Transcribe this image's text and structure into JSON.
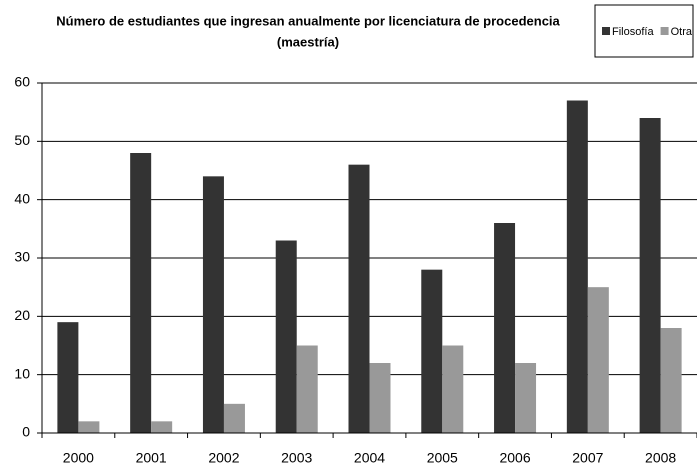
{
  "chart_data": {
    "type": "bar",
    "title": [
      "Número de estudiantes que ingresan anualmente por licenciatura de procedencia",
      "(maestría)"
    ],
    "categories": [
      "2000",
      "2001",
      "2002",
      "2003",
      "2004",
      "2005",
      "2006",
      "2007",
      "2008"
    ],
    "series": [
      {
        "name": "Filosofía",
        "color": "#333333",
        "values": [
          19,
          48,
          44,
          33,
          46,
          28,
          36,
          57,
          54
        ]
      },
      {
        "name": "Otra",
        "color": "#999999",
        "values": [
          2,
          2,
          5,
          15,
          12,
          15,
          12,
          25,
          18
        ]
      }
    ],
    "ylim": [
      0,
      60
    ],
    "yticks": [
      0,
      10,
      20,
      30,
      40,
      50,
      60
    ],
    "grid": true,
    "legend": "top-right"
  }
}
